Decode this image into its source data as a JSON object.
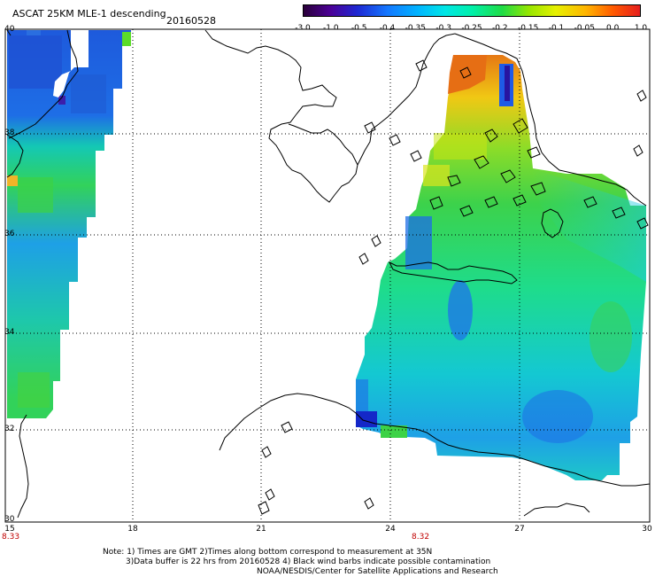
{
  "header": {
    "title": "ASCAT 25KM MLE-1 descending",
    "date": "20160528"
  },
  "colorbar": {
    "labels": [
      "-3.0",
      "-1.0",
      "-0.5",
      "-0.4",
      "-0.35",
      "-0.3",
      "-0.25",
      "-0.2",
      "-0.15",
      "-0.1",
      "-0.05",
      "0.0",
      "1.0"
    ]
  },
  "axes": {
    "lat_labels": [
      "40",
      "38",
      "36",
      "34",
      "32",
      "30"
    ],
    "lon_labels": [
      "15",
      "18",
      "21",
      "24",
      "27",
      "30"
    ]
  },
  "pass_times": [
    "8.33",
    "8.32"
  ],
  "footer": {
    "line1": "Note: 1) Times are GMT 2)Times along bottom correspond to measurement at 35N",
    "line2": "3)Data buffer is 22 hrs from 20160528 4) Black wind barbs indicate possible contamination",
    "line3": "NOAA/NESDIS/Center for Satellite Applications and Research"
  },
  "map": {
    "projection": "cylindrical lat/lon",
    "lat_range": [
      30,
      40
    ],
    "lon_range": [
      15,
      30
    ],
    "swaths": [
      "western swath (Ionian Sea / Sicily strait)",
      "eastern swath (Aegean Sea, Crete, Libyan Sea)"
    ]
  }
}
